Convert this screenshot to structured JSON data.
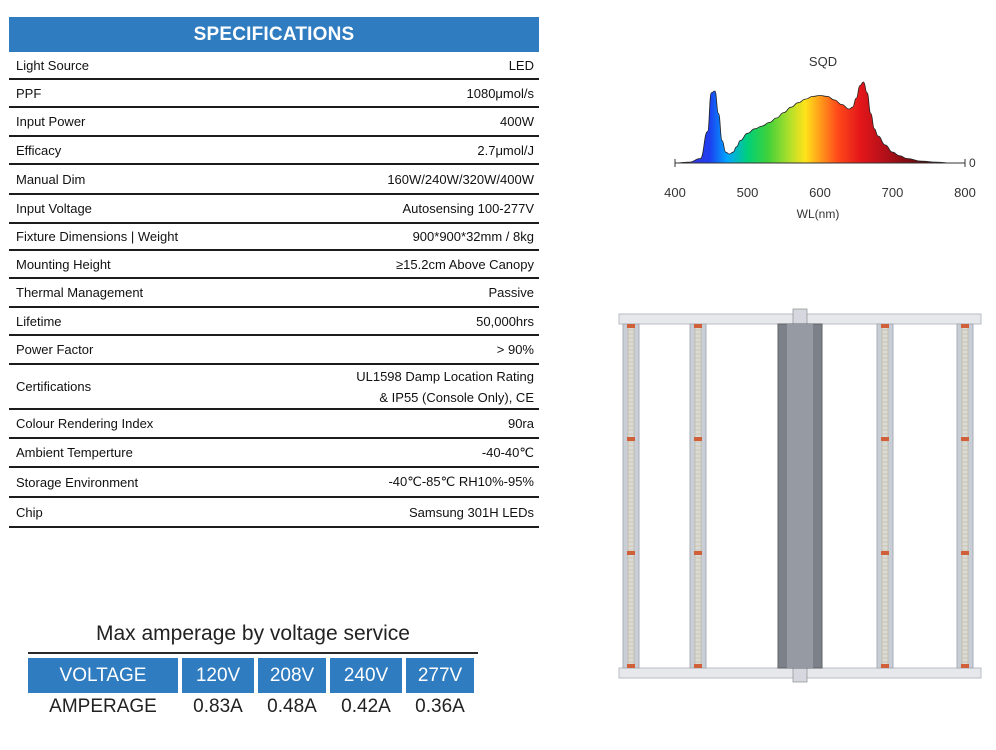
{
  "specs": {
    "title": "SPECIFICATIONS",
    "rows": [
      {
        "label": "Light Source",
        "value": "LED"
      },
      {
        "label": "PPF",
        "value": "1080μmol/s"
      },
      {
        "label": "Input Power",
        "value": "400W"
      },
      {
        "label": "Efficacy",
        "value": "2.7μmol/J"
      },
      {
        "label": "Manual  Dim",
        "value": "160W/240W/320W/400W"
      },
      {
        "label": "Input Voltage",
        "value": "Autosensing 100-277V"
      },
      {
        "label": "Fixture Dimensions | Weight",
        "value": "900*900*32mm / 8kg"
      },
      {
        "label": "Mounting Height",
        "value": "≥15.2cm Above Canopy"
      },
      {
        "label": "Thermal Management",
        "value": "Passive"
      },
      {
        "label": "Lifetime",
        "value": "50,000hrs"
      },
      {
        "label": "Power Factor",
        "value": "> 90%"
      },
      {
        "label": "Certifications",
        "value": "UL1598 Damp Location Rating",
        "value2": "& IP55 (Console Only), CE"
      },
      {
        "label": "Colour Rendering Index",
        "value": "90ra"
      },
      {
        "label": "Ambient Temperture",
        "value": "-40-40℃"
      },
      {
        "label": "Storage Environment",
        "value": "-40℃-85℃ RH10%-95%"
      },
      {
        "label": "Chip",
        "value": "Samsung 301H LEDs"
      }
    ]
  },
  "amperage": {
    "title": "Max amperage by voltage service",
    "header_label": "VOLTAGE",
    "row_label": "AMPERAGE",
    "voltages": [
      "120V",
      "208V",
      "240V",
      "277V"
    ],
    "amps": [
      "0.83A",
      "0.48A",
      "0.42A",
      "0.36A"
    ],
    "header_color": "#2f7cc0"
  },
  "chart_data": {
    "type": "area",
    "title": "SQD",
    "xlabel": "WL(nm)",
    "ylabel": "",
    "x_ticks": [
      "400",
      "500",
      "600",
      "700",
      "800"
    ],
    "y_tick": "0",
    "xlim": [
      400,
      800
    ],
    "ylim": [
      0,
      1
    ],
    "grid": false,
    "series": [
      {
        "x": [
          400,
          420,
          435,
          445,
          450,
          455,
          460,
          465,
          470,
          475,
          480,
          485,
          490,
          500,
          510,
          520,
          530,
          540,
          550,
          560,
          570,
          580,
          590,
          600,
          610,
          620,
          630,
          640,
          645,
          650,
          655,
          660,
          665,
          670,
          675,
          680,
          690,
          700,
          710,
          720,
          740,
          760,
          780,
          800
        ],
        "values": [
          0,
          0.01,
          0.05,
          0.35,
          0.78,
          0.8,
          0.55,
          0.25,
          0.12,
          0.1,
          0.12,
          0.18,
          0.25,
          0.33,
          0.38,
          0.41,
          0.45,
          0.5,
          0.56,
          0.62,
          0.67,
          0.71,
          0.74,
          0.75,
          0.74,
          0.7,
          0.65,
          0.6,
          0.62,
          0.72,
          0.86,
          0.9,
          0.78,
          0.55,
          0.38,
          0.3,
          0.2,
          0.12,
          0.08,
          0.05,
          0.02,
          0.01,
          0,
          0
        ]
      }
    ]
  },
  "fixture": {
    "frame_color": "#c9ced6",
    "console_color": "#7c8089",
    "led_strip_color": "#d9dcd6",
    "marker_color": "#d0603a"
  }
}
